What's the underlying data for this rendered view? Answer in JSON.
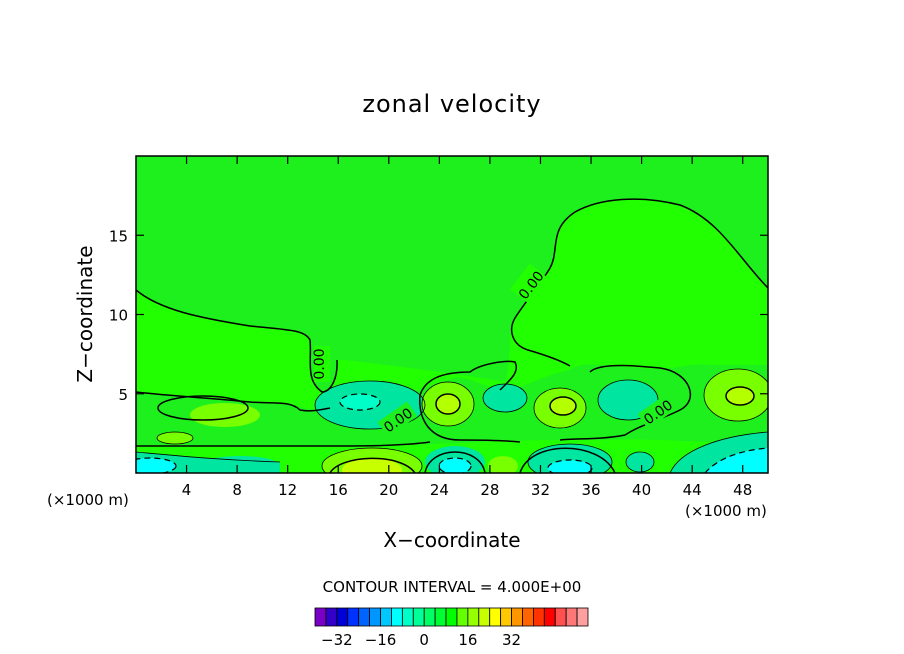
{
  "chart_data": {
    "type": "contour",
    "title": "zonal velocity",
    "xlabel": "X−coordinate",
    "ylabel": "Z−coordinate",
    "x_unit_label": "(×1000 m)",
    "xlim": [
      0,
      50
    ],
    "ylim": [
      0,
      20
    ],
    "x_ticks": [
      4,
      8,
      12,
      16,
      20,
      24,
      28,
      32,
      36,
      40,
      44,
      48
    ],
    "x_tick_labels": [
      "4",
      "8",
      "12",
      "16",
      "20",
      "24",
      "28",
      "32",
      "36",
      "40",
      "44",
      "48"
    ],
    "y_ticks": [
      5,
      10,
      15
    ],
    "y_tick_labels": [
      "5",
      "10",
      "15"
    ],
    "contour_labels": [
      "0.00",
      "0.00",
      "0.00",
      "0.00"
    ],
    "contour_interval_text": "CONTOUR INTERVAL = 4.000E+00",
    "colorbar": {
      "tick_values": [
        -32,
        -16,
        0,
        16,
        32
      ],
      "tick_labels": [
        "−32",
        "−16",
        "0",
        "16",
        "32"
      ],
      "colors": [
        "#7a00c8",
        "#3200c8",
        "#0000d8",
        "#0032ff",
        "#0064ff",
        "#0096ff",
        "#00c8ff",
        "#00ffff",
        "#00ffc8",
        "#00ff96",
        "#00ff64",
        "#00ff32",
        "#00ff00",
        "#64ff00",
        "#96ff00",
        "#c8ff00",
        "#ffff00",
        "#ffc800",
        "#ff9600",
        "#ff6400",
        "#ff3200",
        "#ff0000",
        "#ff5050",
        "#ff7878",
        "#ffa0a0"
      ]
    },
    "background_color": "#1ef01e"
  }
}
